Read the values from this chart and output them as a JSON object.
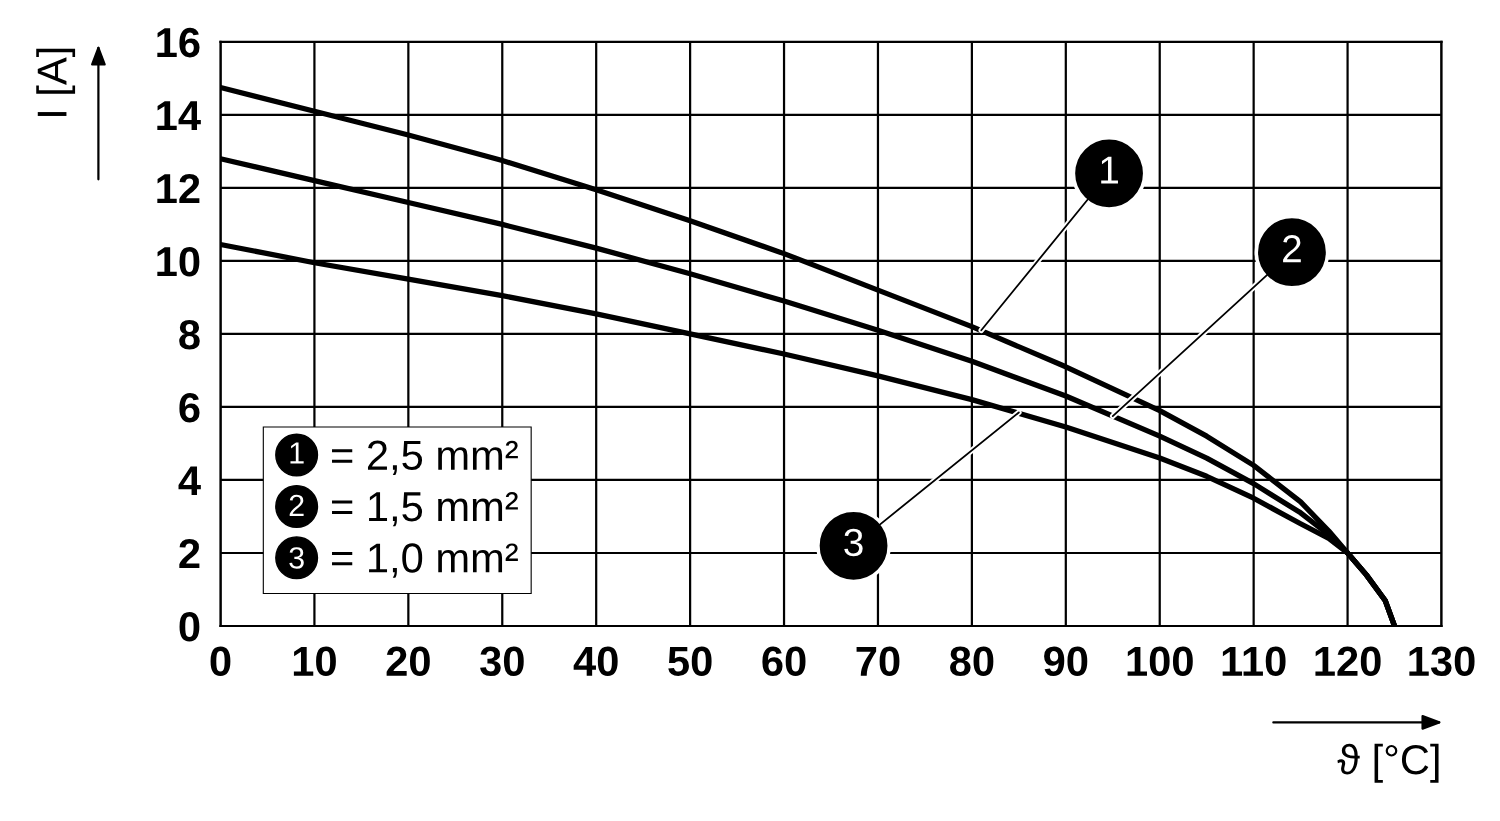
{
  "chart_data": {
    "type": "line",
    "xlabel": "ϑ [°C]",
    "ylabel": "I [A]",
    "xlim": [
      0,
      130
    ],
    "xticks": [
      0,
      10,
      20,
      30,
      40,
      50,
      60,
      70,
      80,
      90,
      100,
      110,
      120,
      130
    ],
    "ylim": [
      0,
      16
    ],
    "yticks": [
      0,
      2,
      4,
      6,
      8,
      10,
      12,
      14,
      16
    ],
    "grid": true,
    "legend": "bottom left",
    "marker": "none",
    "line_style": "solid",
    "series": [
      {
        "name": "= 2,5 mm²",
        "color": "#000000",
        "x": [
          0,
          10,
          20,
          30,
          40,
          50,
          60,
          70,
          80,
          90,
          100,
          105,
          110,
          115,
          118,
          120,
          122,
          124,
          125
        ],
        "values": [
          14.75,
          14.1,
          13.45,
          12.75,
          11.95,
          11.1,
          10.2,
          9.2,
          8.2,
          7.1,
          5.9,
          5.2,
          4.4,
          3.4,
          2.6,
          2.0,
          1.4,
          0.7,
          0
        ]
      },
      {
        "name": "= 1,5 mm²",
        "color": "#000000",
        "x": [
          0,
          10,
          20,
          30,
          40,
          50,
          60,
          70,
          80,
          90,
          100,
          105,
          110,
          115,
          118,
          120,
          122,
          124,
          125
        ],
        "values": [
          12.8,
          12.2,
          11.6,
          11.0,
          10.35,
          9.65,
          8.9,
          8.1,
          7.25,
          6.3,
          5.2,
          4.6,
          3.9,
          3.1,
          2.5,
          2.0,
          1.4,
          0.7,
          0
        ]
      },
      {
        "name": "= 1,0 mm²",
        "color": "#000000",
        "x": [
          0,
          10,
          20,
          30,
          40,
          50,
          60,
          70,
          80,
          90,
          100,
          105,
          110,
          115,
          118,
          120,
          122,
          124,
          125
        ],
        "values": [
          10.45,
          9.95,
          9.5,
          9.05,
          8.55,
          8.0,
          7.45,
          6.85,
          6.2,
          5.45,
          4.6,
          4.1,
          3.5,
          2.8,
          2.4,
          2.0,
          1.4,
          0.7,
          0
        ]
      }
    ],
    "annotations": [
      {
        "text": "1",
        "x": 81,
        "y": 8.1
      },
      {
        "text": "2",
        "x": 95,
        "y": 5.75
      },
      {
        "text": "3",
        "x": 85,
        "y": 5.85
      }
    ]
  }
}
